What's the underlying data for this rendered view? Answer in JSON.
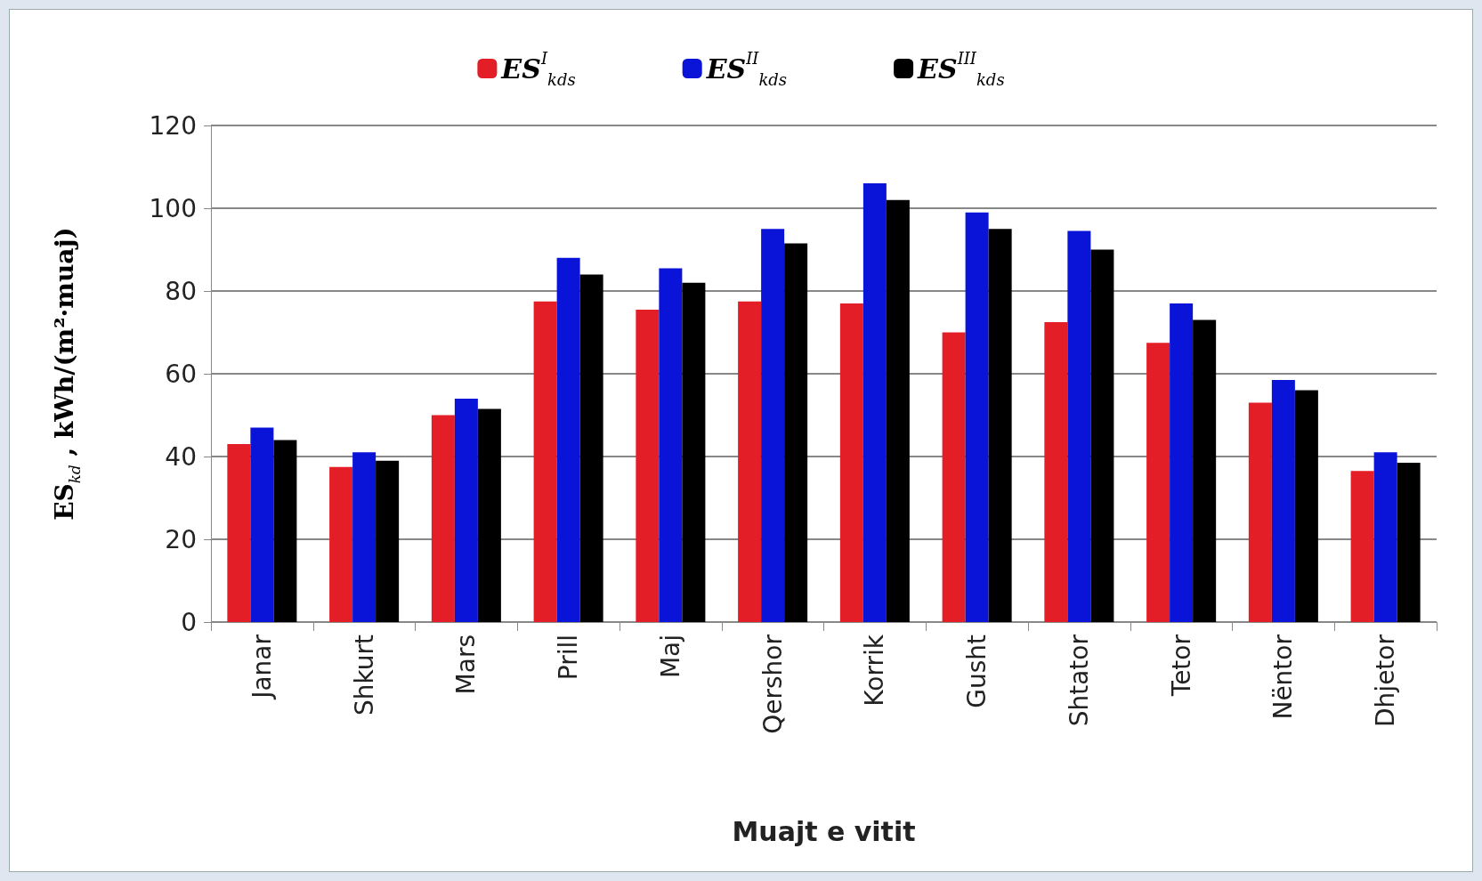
{
  "chart_data": {
    "type": "bar",
    "xlabel": "Muajt e vitit",
    "ylabel": "ES$_{kd}$ , kWh/(m²·muaj)",
    "categories": [
      "Janar",
      "Shkurt",
      "Mars",
      "Prill",
      "Maj",
      "Qershor",
      "Korrik",
      "Gusht",
      "Shtator",
      "Tetor",
      "Nëntor",
      "Dhjetor"
    ],
    "series": [
      {
        "name": "ES$^{I}$$_{kds}$",
        "color": "#e41e26",
        "values": [
          43,
          37.5,
          50,
          77.5,
          75.5,
          77.5,
          77,
          70,
          72.5,
          67.5,
          53,
          36.5
        ]
      },
      {
        "name": "ES$^{II}$$_{kds}$",
        "color": "#0a14d9",
        "values": [
          47,
          41,
          54,
          88,
          85.5,
          95,
          106,
          99,
          94.5,
          77,
          58.5,
          41
        ]
      },
      {
        "name": "ES$^{III}$$_{kds}$",
        "color": "#000000",
        "values": [
          44,
          39,
          51.5,
          84,
          82,
          91.5,
          102,
          95,
          90,
          73,
          56,
          38.5
        ]
      }
    ],
    "ylim": [
      0,
      120
    ],
    "yticks": [
      0,
      20,
      40,
      60,
      80,
      100,
      120
    ],
    "grid": "y",
    "legend": "top"
  }
}
